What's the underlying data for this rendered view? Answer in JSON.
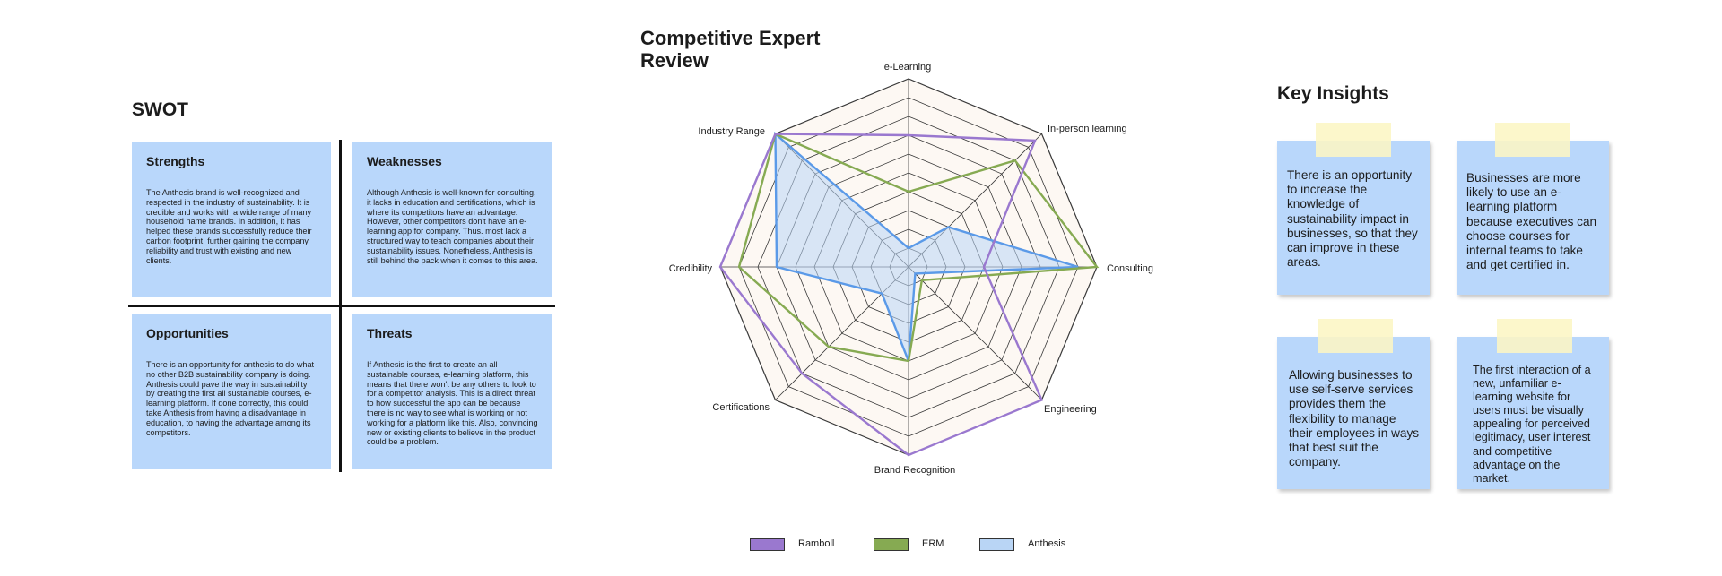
{
  "swot": {
    "title": "SWOT",
    "strengths": {
      "heading": "Strengths",
      "body": "The Anthesis brand is well-recognized and respected in the industry of sustainability. It is credible and works with a wide range of many household name brands. In addition, it has helped these brands successfully reduce their carbon footprint, further gaining the company reliability and trust with existing and new clients."
    },
    "weaknesses": {
      "heading": "Weaknesses",
      "body": "Although Anthesis is well-known for consulting, it lacks in education and certifications, which is where its competitors have an advantage. However, other competitors don't have an e-learning app for company. Thus. most lack a structured way to teach companies about their sustainability issues. Nonetheless, Anthesis is still behind the pack when it comes to this area."
    },
    "opportunities": {
      "heading": "Opportunities",
      "body": "There is an opportunity for anthesis to do what no other B2B sustainability company is doing. Anthesis could pave the way in sustainability by creating the first all sustainable courses, e-learning platform. If done correctly, this could take Anthesis from having a disadvantage in education, to having the advantage among its competitors."
    },
    "threats": {
      "heading": "Threats",
      "body": "If Anthesis is the first to create an all sustainable courses, e-learning platform, this means that there won't be any others to look to for a competitor analysis. This is a direct threat to how successful the app can be because there is no way to see what is working or not working for a platform like this. Also, convincing new or existing clients to believe in the product could be a problem."
    }
  },
  "chart_data": {
    "type": "radar",
    "title": "Competitive Expert Review",
    "axes": [
      "e-Learning",
      "In-person learning",
      "Consulting",
      "Engineering",
      "Brand Recognition",
      "Certifications",
      "Credibility",
      "Industry Range"
    ],
    "rmax": 10,
    "rings": 10,
    "series": [
      {
        "name": "Ramboll",
        "color": "#9a78cf",
        "fill": "none",
        "values": [
          7,
          9.5,
          4,
          10,
          10,
          8,
          10,
          10
        ]
      },
      {
        "name": "ERM",
        "color": "#86aa52",
        "fill": "none",
        "values": [
          4,
          8,
          10,
          1,
          5,
          6,
          9,
          10
        ]
      },
      {
        "name": "Anthesis",
        "color": "#5b9ae8",
        "fill": "#b9d5f5",
        "values": [
          1,
          3,
          9,
          0.5,
          5,
          2,
          7,
          10
        ]
      }
    ],
    "legend_position": "bottom"
  },
  "legend_colors": {
    "Ramboll": "#9a78cf",
    "ERM": "#86aa52",
    "Anthesis": "#b9d5f5"
  },
  "insights": {
    "title": "Key Insights",
    "notes": [
      "There is an opportunity to increase the knowledge of sustainability impact in businesses, so that they can improve in these areas.",
      "Businesses are more likely to use an e-learning platform because executives can choose courses for internal teams to take and get certified in.",
      "Allowing businesses to use self-serve services provides them the flexibility to manage their employees in ways that best suit the company.",
      "The first interaction of a new, unfamiliar e-learning website for users must be visually appealing for perceived legitimacy, user interest and competitive advantage on the market."
    ]
  }
}
